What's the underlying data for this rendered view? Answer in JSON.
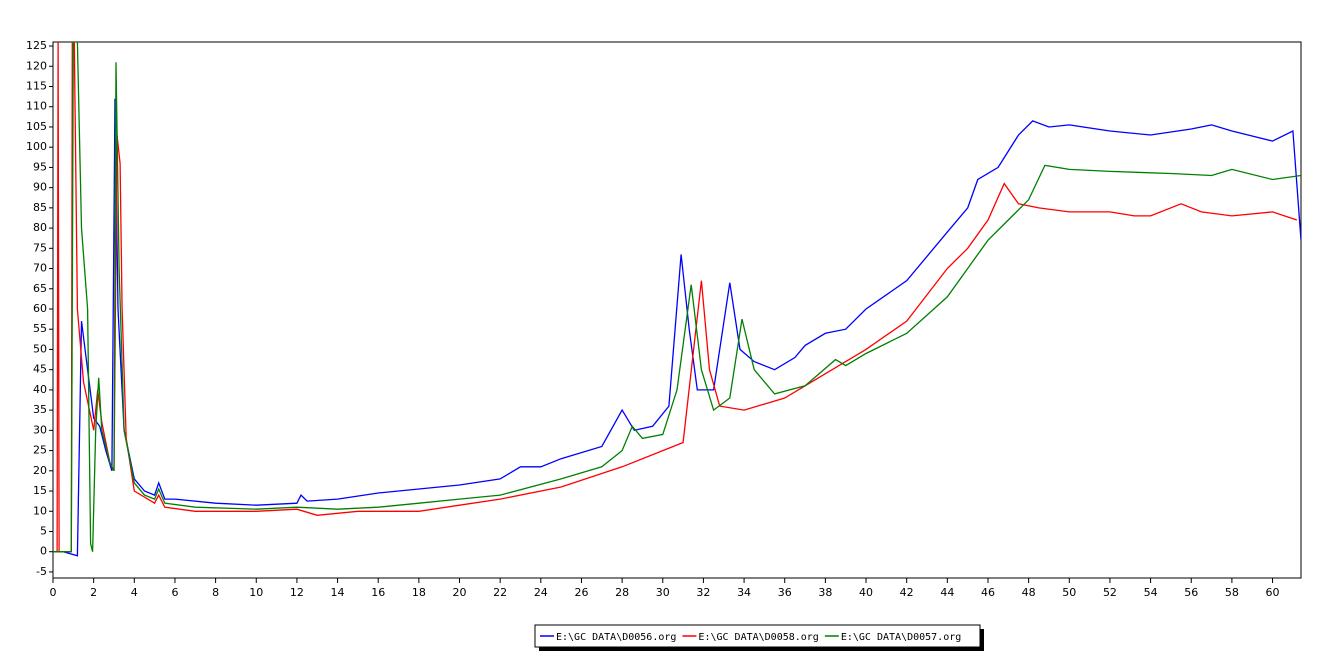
{
  "chart_data": {
    "type": "line",
    "xlim": [
      0,
      61.4
    ],
    "ylim": [
      -6.5,
      126
    ],
    "xticks": [
      0,
      2,
      4,
      6,
      8,
      10,
      12,
      14,
      16,
      18,
      20,
      22,
      24,
      26,
      28,
      30,
      32,
      34,
      36,
      38,
      40,
      42,
      44,
      46,
      48,
      50,
      52,
      54,
      56,
      58,
      60
    ],
    "yticks": [
      -5,
      0,
      5,
      10,
      15,
      20,
      25,
      30,
      35,
      40,
      45,
      50,
      55,
      60,
      65,
      70,
      75,
      80,
      85,
      90,
      95,
      100,
      105,
      110,
      115,
      120,
      125
    ],
    "series": [
      {
        "name": "E:\\GC DATA\\D0056.org",
        "color": "#0000ff",
        "x": [
          0,
          0.5,
          1.2,
          1.4,
          1.7,
          2,
          2.3,
          2.6,
          2.9,
          3.05,
          3.2,
          3.5,
          4,
          4.5,
          5,
          5.2,
          5.5,
          6,
          8,
          10,
          12,
          12.2,
          12.5,
          14,
          16,
          18,
          20,
          22,
          23,
          24,
          25,
          27,
          28,
          28.6,
          29.5,
          30.3,
          30.9,
          31.3,
          31.7,
          32.5,
          33.3,
          33.8,
          34.5,
          35.5,
          36.5,
          37,
          38,
          39,
          40,
          42,
          44,
          45,
          45.5,
          46.5,
          47.5,
          48.2,
          49,
          50,
          52,
          54,
          56,
          57,
          58,
          60,
          61,
          61.4
        ],
        "values": [
          0,
          0,
          -1,
          57,
          45,
          33,
          31,
          25,
          20,
          112,
          60,
          30,
          18,
          15,
          14,
          17,
          13,
          13,
          12,
          11.5,
          12,
          14,
          12.5,
          13,
          14.5,
          15.5,
          16.5,
          18,
          21,
          21,
          23,
          26,
          35,
          30,
          31,
          36,
          73.5,
          55,
          40,
          40,
          66.5,
          50,
          47,
          45,
          48,
          51,
          54,
          55,
          60,
          67,
          79,
          85,
          92,
          95,
          103,
          106.5,
          105,
          105.5,
          104,
          103,
          104.5,
          105.5,
          104,
          101.5,
          104,
          77
        ]
      },
      {
        "name": "E:\\GC DATA\\D0058.org",
        "color": "#ff0000",
        "x": [
          0,
          0.2,
          0.25,
          0.3,
          0.9,
          0.95,
          1.05,
          1.2,
          1.5,
          2,
          2.2,
          2.4,
          2.8,
          3,
          3.15,
          3.3,
          3.4,
          3.6,
          4,
          5,
          5.2,
          5.5,
          7,
          10,
          12,
          13,
          15,
          18,
          20,
          22,
          25,
          28,
          30,
          31,
          31.9,
          32.3,
          32.8,
          34,
          36,
          38,
          40,
          42,
          44,
          45,
          46,
          46.8,
          47.5,
          48.5,
          50,
          52,
          53.2,
          54,
          55.5,
          56.5,
          58,
          60,
          61.2
        ],
        "values": [
          0,
          0,
          126,
          0,
          0,
          126,
          126,
          60,
          42,
          30,
          40,
          32,
          22,
          20,
          103,
          96,
          60,
          28,
          15,
          12,
          14,
          11,
          10,
          10,
          10.5,
          9,
          10,
          10,
          11.5,
          13,
          16,
          21,
          25,
          27,
          67,
          45,
          36,
          35,
          38,
          44,
          50,
          57,
          70,
          75,
          82,
          91,
          86,
          85,
          84,
          84,
          83,
          83,
          86,
          84,
          83,
          84,
          82
        ]
      },
      {
        "name": "E:\\GC DATA\\D0057.org",
        "color": "#008000",
        "x": [
          0,
          0.9,
          1.0,
          1.2,
          1.4,
          1.7,
          1.85,
          1.95,
          2.1,
          2.25,
          2.4,
          2.8,
          3.0,
          3.1,
          3.25,
          3.5,
          4,
          4.5,
          5,
          5.2,
          5.5,
          7,
          10,
          12,
          14,
          16,
          18,
          20,
          22,
          25,
          27,
          28,
          28.5,
          29,
          30,
          30.7,
          31.4,
          31.9,
          32.5,
          33.3,
          33.9,
          34.5,
          35.5,
          37,
          38.5,
          39,
          40,
          42,
          44,
          46,
          47,
          48,
          48.8,
          50,
          52,
          55,
          57,
          58,
          60,
          61.4
        ],
        "values": [
          0,
          0,
          126,
          126,
          80,
          60,
          2,
          0,
          30,
          43,
          30,
          22,
          20,
          121,
          70,
          30,
          17,
          14,
          13,
          15.5,
          12,
          11,
          10.5,
          11,
          10.5,
          11,
          12,
          13,
          14,
          18,
          21,
          25,
          31,
          28,
          29,
          40,
          66,
          45,
          35,
          38,
          57.5,
          45,
          39,
          41,
          47.5,
          46,
          49,
          54,
          63,
          77,
          82,
          87,
          95.5,
          94.5,
          94,
          93.5,
          93,
          94.5,
          92,
          93
        ]
      }
    ]
  }
}
